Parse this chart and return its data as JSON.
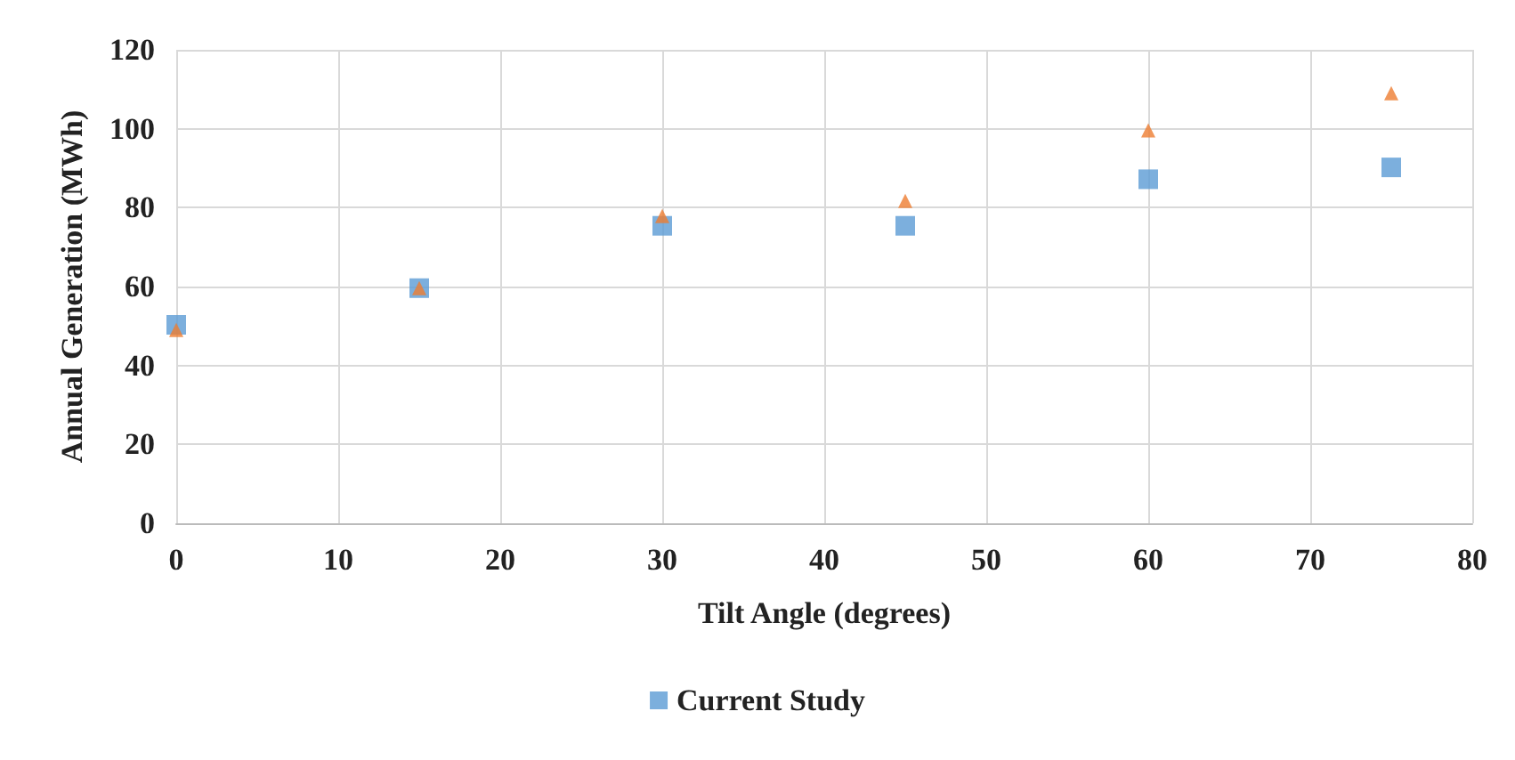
{
  "chart_data": {
    "type": "scatter",
    "xlabel": "Tilt Angle (degrees)",
    "ylabel": "Annual Generation (MWh)",
    "x": [
      0,
      15,
      30,
      45,
      60,
      75
    ],
    "series": [
      {
        "name": "Current Study",
        "color": "#5b9bd5",
        "marker": "square",
        "values": [
          50.3,
          59.6,
          75.4,
          75.4,
          87.2,
          90.2
        ]
      },
      {
        "color": "#ed7d31",
        "marker": "triangle",
        "values": [
          49,
          59.6,
          77.9,
          81.7,
          99.6,
          109
        ]
      }
    ],
    "xlim": [
      0,
      80
    ],
    "xticks": [
      0,
      10,
      20,
      30,
      40,
      50,
      60,
      70,
      80
    ],
    "ylim": [
      0,
      120
    ],
    "yticks": [
      0,
      20,
      40,
      60,
      80,
      100,
      120
    ],
    "grid": true,
    "legend": "bottom"
  }
}
